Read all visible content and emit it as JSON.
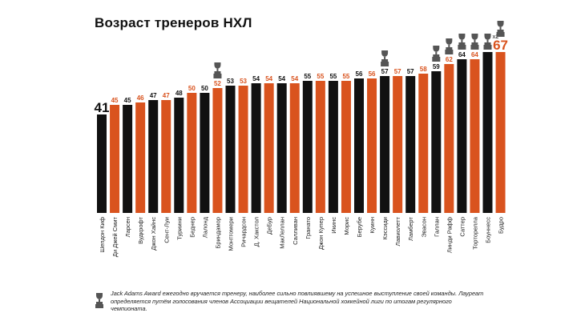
{
  "title": "Возраст тренеров НХЛ",
  "colors": {
    "black": "#111111",
    "orange": "#d9531e",
    "trophy": "#555555"
  },
  "chart_data": {
    "type": "bar",
    "title": "Возраст тренеров НХЛ",
    "ylabel": "",
    "xlabel": "",
    "ylim": [
      0,
      67
    ],
    "categories": [
      "Шепдон Киф",
      "Ди Джей Смит",
      "Ларсен",
      "Вудкрофт",
      "Джон Хайнс",
      "Сент-Луи",
      "Туриини",
      "Беднер",
      "Лалонд",
      "Бриндамор",
      "Монтгомери",
      "Ричардсон",
      "Д. Хакстол",
      "ДеБур",
      "МакЛеллан",
      "Салливан",
      "Гранато",
      "Джон Купер",
      "Икинс",
      "Морис",
      "Берубе",
      "Куинн",
      "Кэссиди",
      "Лавиолетт",
      "Ламберт",
      "Эвасон",
      "Галлан",
      "Линди Рафф",
      "Саттер",
      "Торторелла",
      "Боуннесс",
      "Будро"
    ],
    "values": [
      41,
      45,
      45,
      46,
      47,
      47,
      48,
      50,
      50,
      52,
      53,
      53,
      54,
      54,
      54,
      54,
      55,
      55,
      55,
      55,
      56,
      56,
      57,
      57,
      57,
      58,
      59,
      62,
      64,
      64,
      67,
      67
    ],
    "colors": [
      "black",
      "orange",
      "black",
      "orange",
      "black",
      "orange",
      "black",
      "orange",
      "black",
      "orange",
      "black",
      "orange",
      "black",
      "orange",
      "black",
      "orange",
      "black",
      "orange",
      "black",
      "orange",
      "black",
      "orange",
      "black",
      "orange",
      "black",
      "orange",
      "black",
      "orange",
      "black",
      "orange",
      "black",
      "orange"
    ],
    "trophies": [
      0,
      0,
      0,
      0,
      0,
      0,
      0,
      0,
      0,
      1,
      0,
      0,
      0,
      0,
      0,
      0,
      0,
      0,
      0,
      0,
      0,
      0,
      1,
      0,
      0,
      0,
      1,
      1,
      1,
      1,
      2,
      1
    ],
    "value_labels": [
      "41",
      "45",
      "45",
      "46",
      "47",
      "47",
      "48",
      "50",
      "50",
      "52",
      "53",
      "53",
      "54",
      "54",
      "54",
      "54",
      "55",
      "55",
      "55",
      "55",
      "56",
      "56",
      "57",
      "57",
      "57",
      "58",
      "59",
      "62",
      "64",
      "64",
      "",
      "67"
    ],
    "multiplier_label": "x2"
  },
  "footnote": "Jack Adams Award ежегодно вручается тренеру, наиболее сильно повлиявшему на успешное выступление своей команды. Лауреат определяется путём голосования членов Ассоциации вещателей Национальной хоккейной лиги по итогам регулярного чемпионата."
}
